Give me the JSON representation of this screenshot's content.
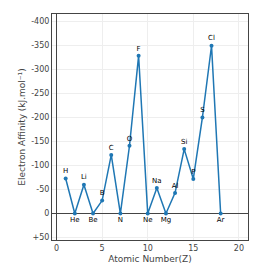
{
  "chart_data": {
    "type": "line",
    "xlabel": "Atomic Number(Z)",
    "ylabel": "Electron Affinity (kJ.mol⁻¹)",
    "x": [
      1,
      2,
      3,
      4,
      5,
      6,
      7,
      8,
      9,
      10,
      11,
      12,
      13,
      14,
      15,
      16,
      17,
      18
    ],
    "values": [
      -73,
      0,
      -60,
      0,
      -27,
      -122,
      0,
      -141,
      -328,
      0,
      -53,
      0,
      -43,
      -134,
      -72,
      -200,
      -349,
      0
    ],
    "annotations": [
      "H",
      "He",
      "Li",
      "Be",
      "B",
      "C",
      "N",
      "O",
      "F",
      "Ne",
      "Na",
      "Mg",
      "Al",
      "Si",
      "P",
      "S",
      "Cl",
      "Ar"
    ],
    "marker": "circle",
    "xlim": [
      -0.5,
      21
    ],
    "xticks": [
      0,
      5,
      10,
      15,
      20
    ],
    "ylim": [
      55,
      -415
    ],
    "yticks": [
      -400,
      -350,
      -300,
      -250,
      -200,
      -150,
      -100,
      -50,
      0,
      {
        "value": 50,
        "label": "+50"
      }
    ],
    "grid": true
  }
}
